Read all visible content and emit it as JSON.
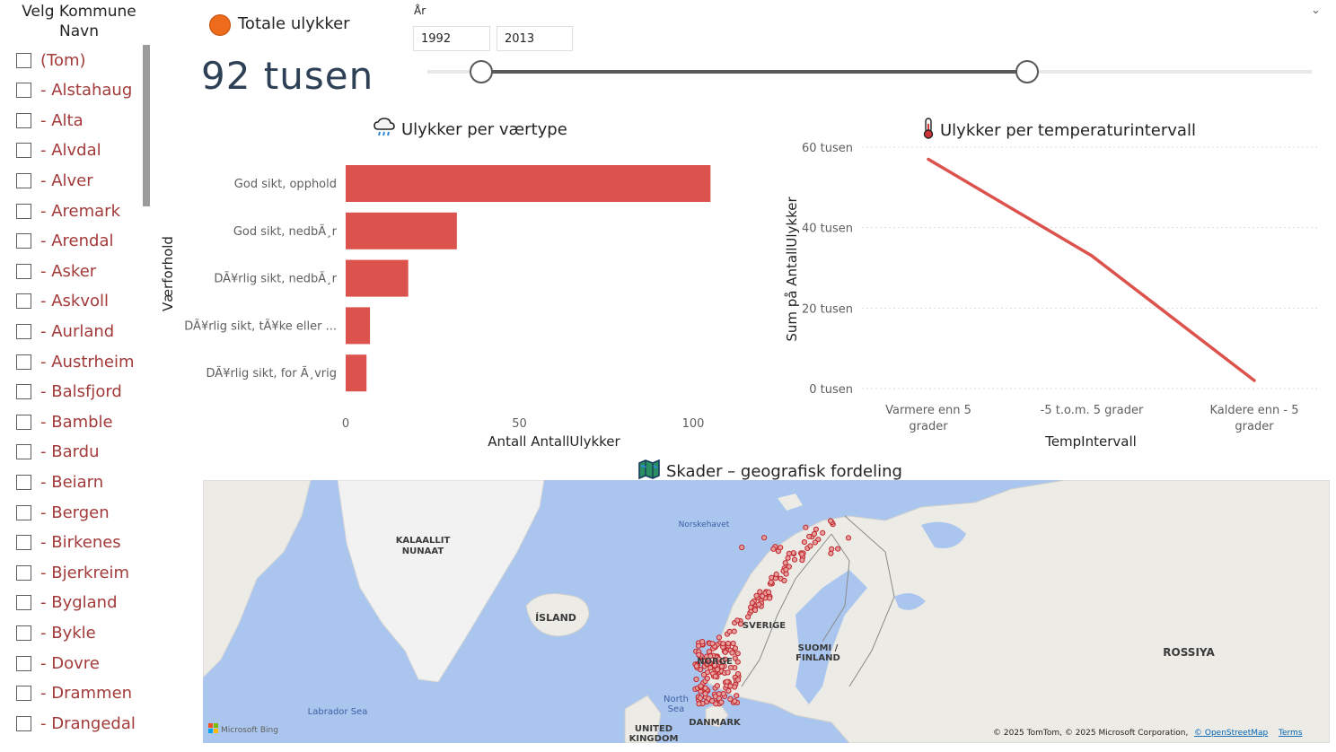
{
  "slicer": {
    "title": "Velg Kommune Navn",
    "items": [
      "(Tom)",
      "- Alstahaug",
      "- Alta",
      "- Alvdal",
      "- Alver",
      "- Aremark",
      "- Arendal",
      "- Asker",
      "- Askvoll",
      "- Aurland",
      "- Austrheim",
      "- Balsfjord",
      "- Bamble",
      "- Bardu",
      "- Beiarn",
      "- Bergen",
      "- Birkenes",
      "- Bjerkreim",
      "- Bygland",
      "- Bykle",
      "- Dovre",
      "- Drammen",
      "- Drangedal"
    ]
  },
  "kpi": {
    "title": "Totale ulykker",
    "value": "92 tusen",
    "dot_color": "#ef6b1c"
  },
  "year_slicer": {
    "label": "År",
    "from": "1992",
    "to": "2013"
  },
  "bar_chart": {
    "title": "Ulykker per værtype",
    "icon": "rain-cloud-icon",
    "xlabel": "Antall AntallUlykker",
    "ylabel": "Værforhold",
    "ticks": [
      "0",
      "50",
      "100"
    ]
  },
  "line_chart": {
    "title": "Ulykker per temperaturintervall",
    "icon": "thermometer-icon",
    "xlabel": "TempIntervall",
    "ylabel": "Sum på AntallUlykker",
    "yticks": [
      "60 tusen",
      "40 tusen",
      "20 tusen",
      "0 tusen"
    ],
    "xcat_lines": [
      [
        "Varmere enn 5",
        "grader"
      ],
      [
        "-5 t.o.m. 5 grader"
      ],
      [
        "Kaldere enn - 5",
        "grader"
      ]
    ]
  },
  "map": {
    "title": "Skader – geografisk fordeling",
    "icon": "map-icon",
    "labels": {
      "greenland": [
        "KALAALLIT",
        "NUNAAT"
      ],
      "norwegian_sea": "Norskehavet",
      "iceland": "ÍSLAND",
      "sweden": "SVERIGE",
      "finland": [
        "SUOMI /",
        "FINLAND"
      ],
      "russia": "ROSSIYA",
      "norway": "NORGE",
      "north_sea": [
        "North",
        "Sea"
      ],
      "labrador": "Labrador Sea",
      "denmark": "DANMARK",
      "uk": [
        "UNITED",
        "KINGDOM"
      ]
    },
    "logo": "Microsoft Bing",
    "copyright": "© 2025 TomTom, © 2025 Microsoft Corporation,",
    "osm_link": "© OpenStreetMap",
    "terms_link": "Terms",
    "point_color": "#c0262b"
  },
  "chart_data": [
    {
      "type": "bar",
      "orientation": "horizontal",
      "categories": [
        "God sikt, opphold",
        "God sikt, nedbÃ¸r",
        "DÃ¥rlig sikt, nedbÃ¸r",
        "DÃ¥rlig sikt, tÃ¥ke eller ...",
        "DÃ¥rlig sikt, for Ã¸vrig"
      ],
      "values": [
        105,
        32,
        18,
        7,
        6
      ],
      "xlabel": "Antall AntallUlykker",
      "ylabel": "Værforhold",
      "xlim": [
        0,
        110
      ],
      "color": "#dc524d"
    },
    {
      "type": "line",
      "categories": [
        "Varmere enn 5 grader",
        "-5 t.o.m. 5 grader",
        "Kaldere enn - 5 grader"
      ],
      "values": [
        57,
        33,
        2
      ],
      "unit": "tusen",
      "xlabel": "TempIntervall",
      "ylabel": "Sum på AntallUlykker",
      "ylim": [
        0,
        60
      ],
      "color": "#dc524d"
    }
  ]
}
